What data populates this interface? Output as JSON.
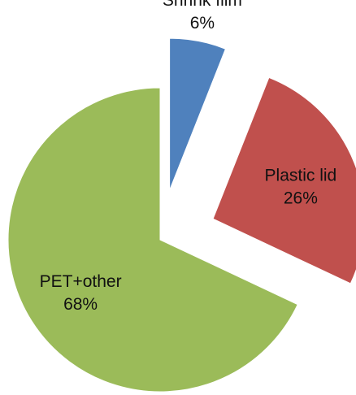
{
  "chart_data": {
    "type": "pie",
    "exploded": true,
    "legend": "none",
    "slices": [
      {
        "name": "Shrink film",
        "value": 6,
        "label": "Shrink film",
        "value_label": "6%",
        "color": "#4F81BD"
      },
      {
        "name": "Plastic lid",
        "value": 26,
        "label": "Plastic lid",
        "value_label": "26%",
        "color": "#C0504D"
      },
      {
        "name": "PET+other",
        "value": 68,
        "label": "PET+other",
        "value_label": "68%",
        "color": "#9BBB59"
      }
    ]
  }
}
